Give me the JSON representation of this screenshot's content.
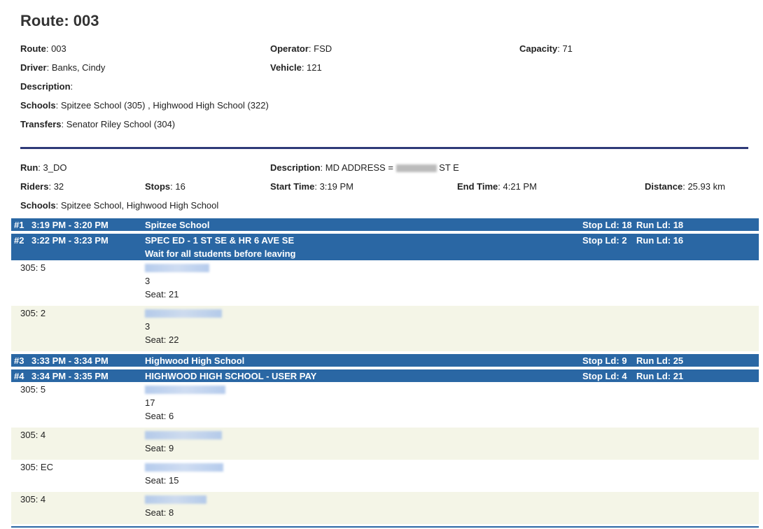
{
  "title": "Route: 003",
  "route_info": {
    "route": {
      "label": "Route",
      "value": "003"
    },
    "operator": {
      "label": "Operator",
      "value": "FSD"
    },
    "capacity": {
      "label": "Capacity",
      "value": "71"
    },
    "driver": {
      "label": "Driver",
      "value": "Banks, Cindy"
    },
    "vehicle": {
      "label": "Vehicle",
      "value": "121"
    },
    "description": {
      "label": "Description",
      "value": ""
    },
    "schools": {
      "label": "Schools",
      "value": "Spitzee School (305) , Highwood High School (322)"
    },
    "transfers": {
      "label": "Transfers",
      "value": "Senator Riley School (304)"
    }
  },
  "run_info": {
    "run": {
      "label": "Run",
      "value": "3_DO"
    },
    "description": {
      "label": "Description",
      "value_prefix": "MD ADDRESS =",
      "value_suffix": "ST E"
    },
    "riders": {
      "label": "Riders",
      "value": "32"
    },
    "stops": {
      "label": "Stops",
      "value": "16"
    },
    "start_time": {
      "label": "Start Time",
      "value": "3:19 PM"
    },
    "end_time": {
      "label": "End Time",
      "value": "4:21 PM"
    },
    "distance": {
      "label": "Distance",
      "value": "25.93 km"
    },
    "schools": {
      "label": "Schools",
      "value": "Spitzee School, Highwood High School"
    }
  },
  "colors": {
    "stop_header": "#2a67a4",
    "rule": "#2e3a78",
    "alt_row": "#f4f5e7"
  },
  "stops": [
    {
      "num": "#1",
      "time": "3:19 PM - 3:20 PM",
      "name": "Spitzee School",
      "note": "",
      "stop_ld": "Stop Ld: 18",
      "run_ld": "Run Ld: 18",
      "riders": []
    },
    {
      "num": "#2",
      "time": "3:22 PM - 3:23 PM",
      "name": "SPEC ED - 1 ST SE & HR 6 AVE SE",
      "note": "Wait for all students before leaving",
      "stop_ld": "Stop Ld: 2",
      "run_ld": "Run Ld: 16",
      "riders": [
        {
          "code": "305: 5",
          "extra": "3",
          "seat": "Seat: 21"
        },
        {
          "code": "305: 2",
          "extra": "3",
          "seat": "Seat: 22"
        }
      ]
    },
    {
      "num": "#3",
      "time": "3:33 PM - 3:34 PM",
      "name": "Highwood High School",
      "note": "",
      "stop_ld": "Stop Ld: 9",
      "run_ld": "Run Ld: 25",
      "riders": []
    },
    {
      "num": "#4",
      "time": "3:34 PM - 3:35 PM",
      "name": "HIGHWOOD HIGH SCHOOL - USER PAY",
      "note": "",
      "stop_ld": "Stop Ld: 4",
      "run_ld": "Run Ld: 21",
      "riders": [
        {
          "code": "305: 5",
          "extra": "17",
          "seat": "Seat: 6"
        },
        {
          "code": "305: 4",
          "extra": "",
          "seat": "Seat: 9"
        },
        {
          "code": "305: EC",
          "extra": "",
          "seat": "Seat: 15"
        },
        {
          "code": "305: 4",
          "extra": "",
          "seat": "Seat: 8"
        }
      ]
    }
  ]
}
